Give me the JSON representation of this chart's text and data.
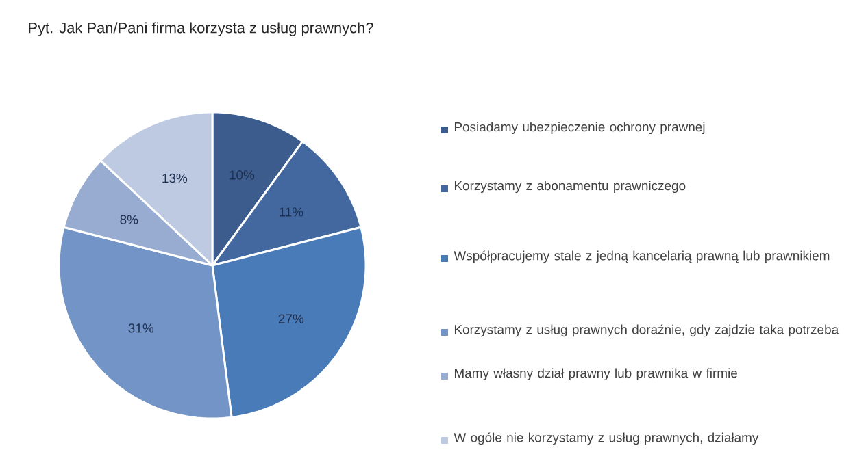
{
  "chart_data": {
    "type": "pie",
    "title": "Pyt. Jak Pan/Pani firma korzysta z usług prawnych?",
    "categories": [
      "Posiadamy ubezpieczenie ochrony prawnej",
      "Korzystamy z abonamentu prawniczego",
      "Współpracujemy stale z jedną kancelarią prawną lub prawnikiem",
      "Korzystamy z usług prawnych doraźnie, gdy zajdzie taka potrzeba",
      "Mamy własny dział prawny lub prawnika w firmie",
      "W ogóle nie korzystamy z usług prawnych, działamy"
    ],
    "values": [
      10,
      11,
      27,
      31,
      8,
      13
    ],
    "value_labels": [
      "10%",
      "11%",
      "27%",
      "31%",
      "8%",
      "13%"
    ],
    "colors": [
      "#3b5c8c",
      "#42689f",
      "#4a7bb9",
      "#7394c6",
      "#98acd1",
      "#bdcae1"
    ],
    "legend": "right"
  }
}
